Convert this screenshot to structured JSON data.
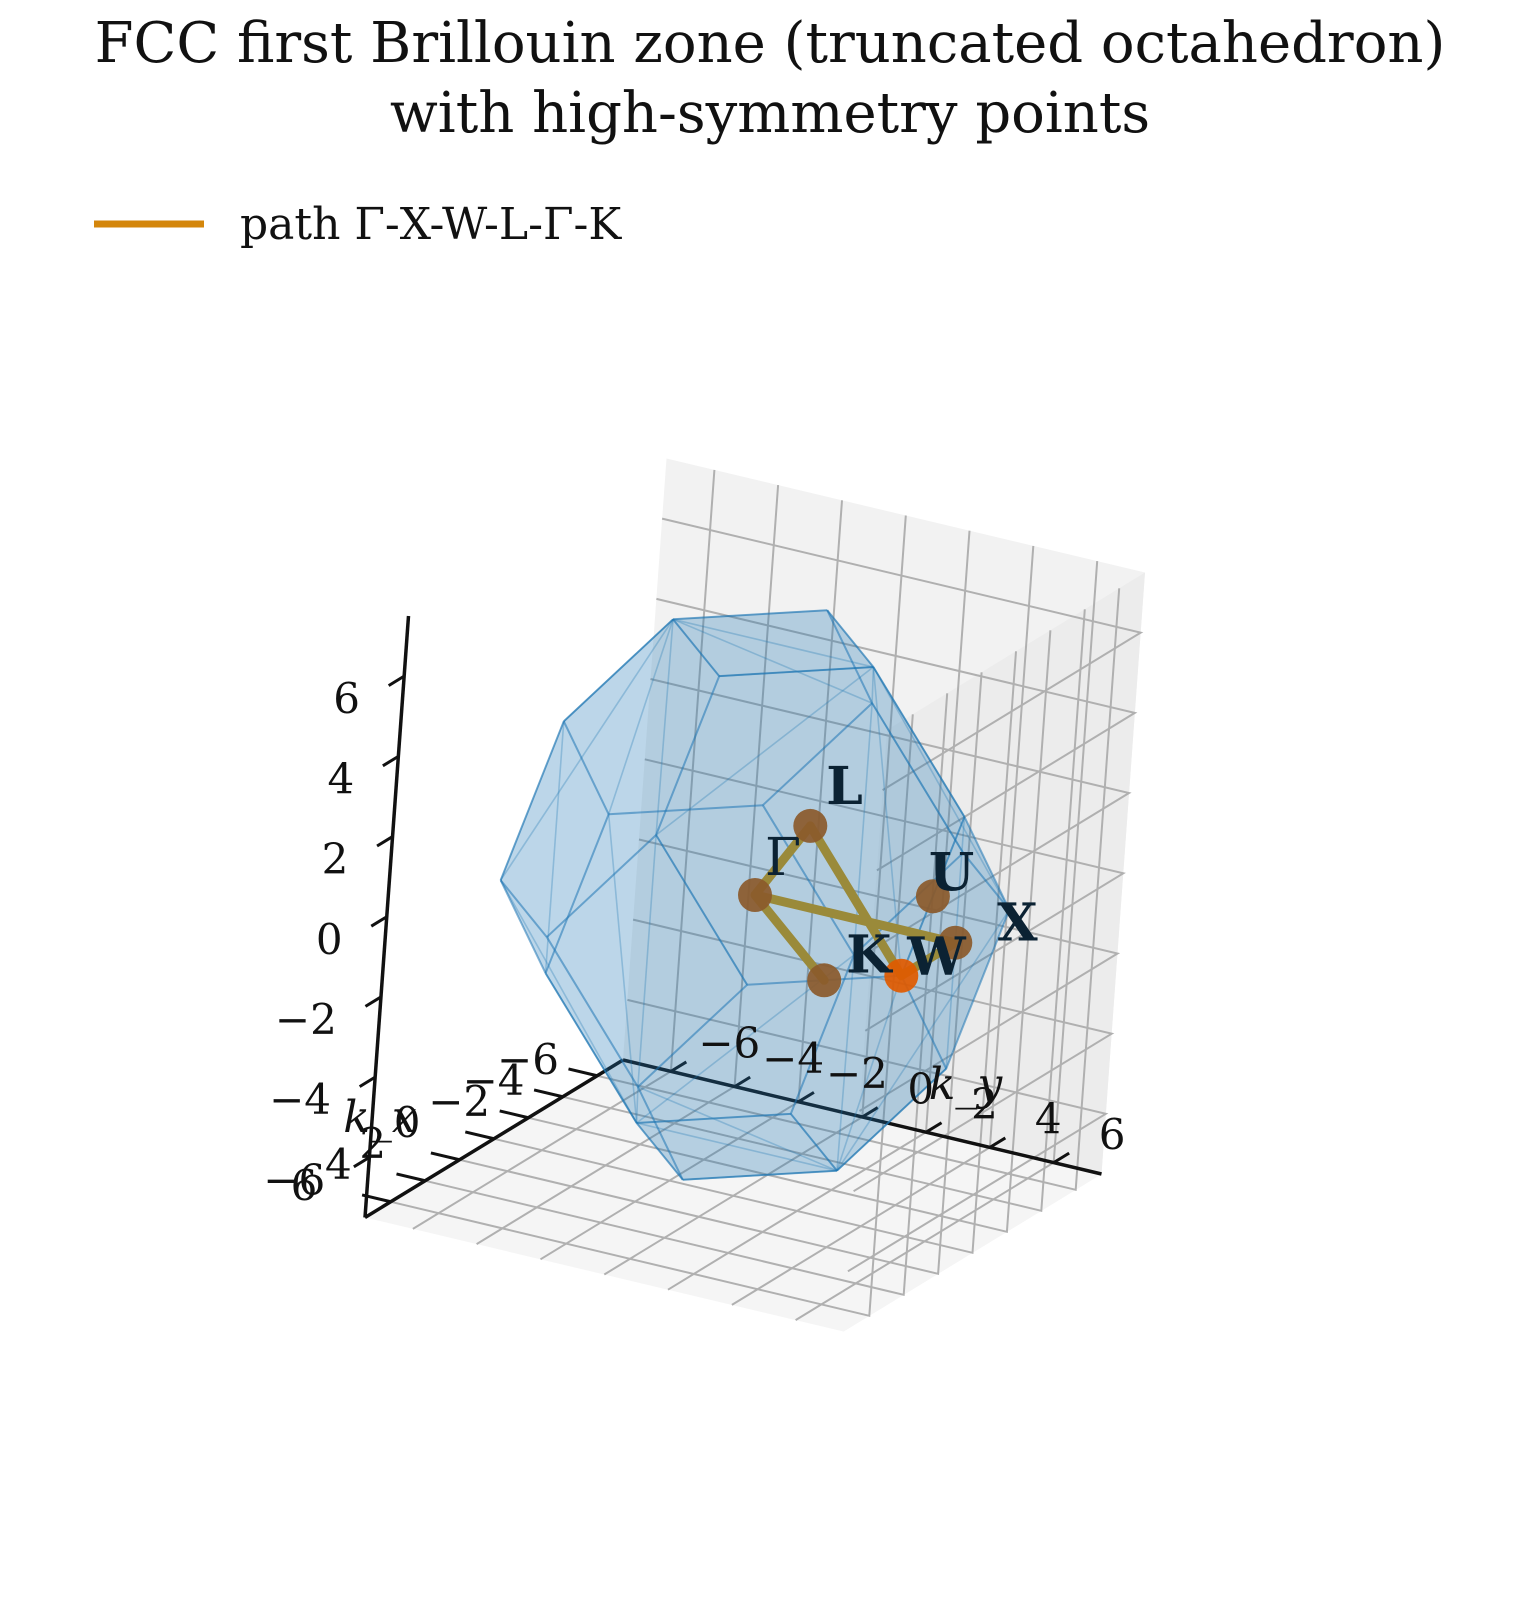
{
  "chart_data": {
    "type": "scatter",
    "subtype": "3d-polyhedron-with-path",
    "title_lines": [
      "FCC first Brillouin zone (truncated octahedron)",
      "with high-symmetry points"
    ],
    "axes": {
      "x": {
        "label": "k_x",
        "ticks": [
          -6,
          -4,
          -2,
          0,
          2,
          4,
          6
        ],
        "tick_labels": [
          "−6",
          "−4",
          "−2",
          "0",
          "2",
          "4",
          "6"
        ],
        "lim": [
          -7.5,
          7.5
        ]
      },
      "y": {
        "label": "k_y",
        "ticks": [
          -6,
          -4,
          -2,
          0,
          2,
          4,
          6
        ],
        "tick_labels": [
          "−6",
          "−4",
          "−2",
          "0",
          "2",
          "4",
          "6"
        ],
        "lim": [
          -7.5,
          7.5
        ]
      },
      "z": {
        "ticks": [
          -6,
          -4,
          -2,
          0,
          2,
          4,
          6
        ],
        "tick_labels": [
          "−6",
          "−4",
          "−2",
          "0",
          "2",
          "4",
          "6"
        ],
        "lim": [
          -7.5,
          7.5
        ]
      }
    },
    "grid": true,
    "legend": {
      "placement": "top-left",
      "entries": [
        {
          "label": "path Γ-X-W-L-Γ-K",
          "color": "#d4860b"
        }
      ]
    },
    "polyhedron": {
      "name": "truncated octahedron",
      "scale": 6.28,
      "face_color": "#1f77b4",
      "face_opacity": 0.35
    },
    "points": [
      {
        "label": "Γ",
        "k": [
          0,
          0,
          0
        ]
      },
      {
        "label": "X",
        "k": [
          0,
          6.28,
          0
        ]
      },
      {
        "label": "W",
        "k": [
          3.14,
          6.28,
          0
        ]
      },
      {
        "label": "L",
        "k": [
          3.14,
          3.14,
          3.14
        ]
      },
      {
        "label": "K",
        "k": [
          4.71,
          4.71,
          0
        ]
      },
      {
        "label": "U",
        "k": [
          1.57,
          6.28,
          1.57
        ]
      }
    ],
    "path": {
      "name": "path Γ-X-W-L-Γ-K",
      "sequence": [
        "Γ",
        "X",
        "W",
        "L",
        "Γ",
        "K"
      ],
      "color": "#d4860b"
    },
    "colors": {
      "points": "#8b5a2b",
      "highlight_point": "#e05a00",
      "path_on_zone": "#9a8a3a",
      "axis_panes": "#f2f2f2",
      "grid": "#b0b0b0"
    }
  }
}
